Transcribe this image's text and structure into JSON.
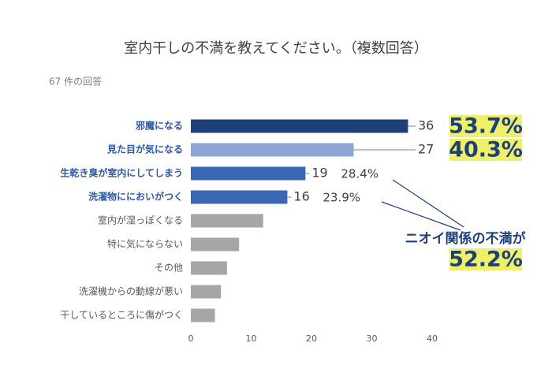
{
  "chart_data": {
    "type": "bar",
    "orientation": "horizontal",
    "title": "室内干しの不満を教えてください。（複数回答）",
    "subtitle": "67 件の回答",
    "categories": [
      "邪魔になる",
      "見た目が気になる",
      "生乾き臭が室内にしてしまう",
      "洗濯物ににおいがつく",
      "室内が湿っぽくなる",
      "特に気にならない",
      "その他",
      "洗濯機からの動線が悪い",
      "干しているところに傷がつく"
    ],
    "values": [
      36,
      27,
      19,
      16,
      12,
      8,
      6,
      5,
      4
    ],
    "value_labels": [
      "36",
      "27",
      "19",
      "16",
      null,
      null,
      null,
      null,
      null
    ],
    "colors": [
      "#1f3f7a",
      "#8ea6d5",
      "#3a66b3",
      "#3a66b3",
      "#a6a6a6",
      "#a6a6a6",
      "#a6a6a6",
      "#a6a6a6",
      "#a6a6a6"
    ],
    "percent_labels": [
      "53.7%",
      "40.3%",
      "28.4%",
      "23.9%"
    ],
    "callout": {
      "text": "ニオイ関係の不満が",
      "value": "52.2%"
    },
    "xlim": [
      0,
      40
    ],
    "xticks": [
      0,
      10,
      20,
      30,
      40
    ],
    "grid": false
  }
}
